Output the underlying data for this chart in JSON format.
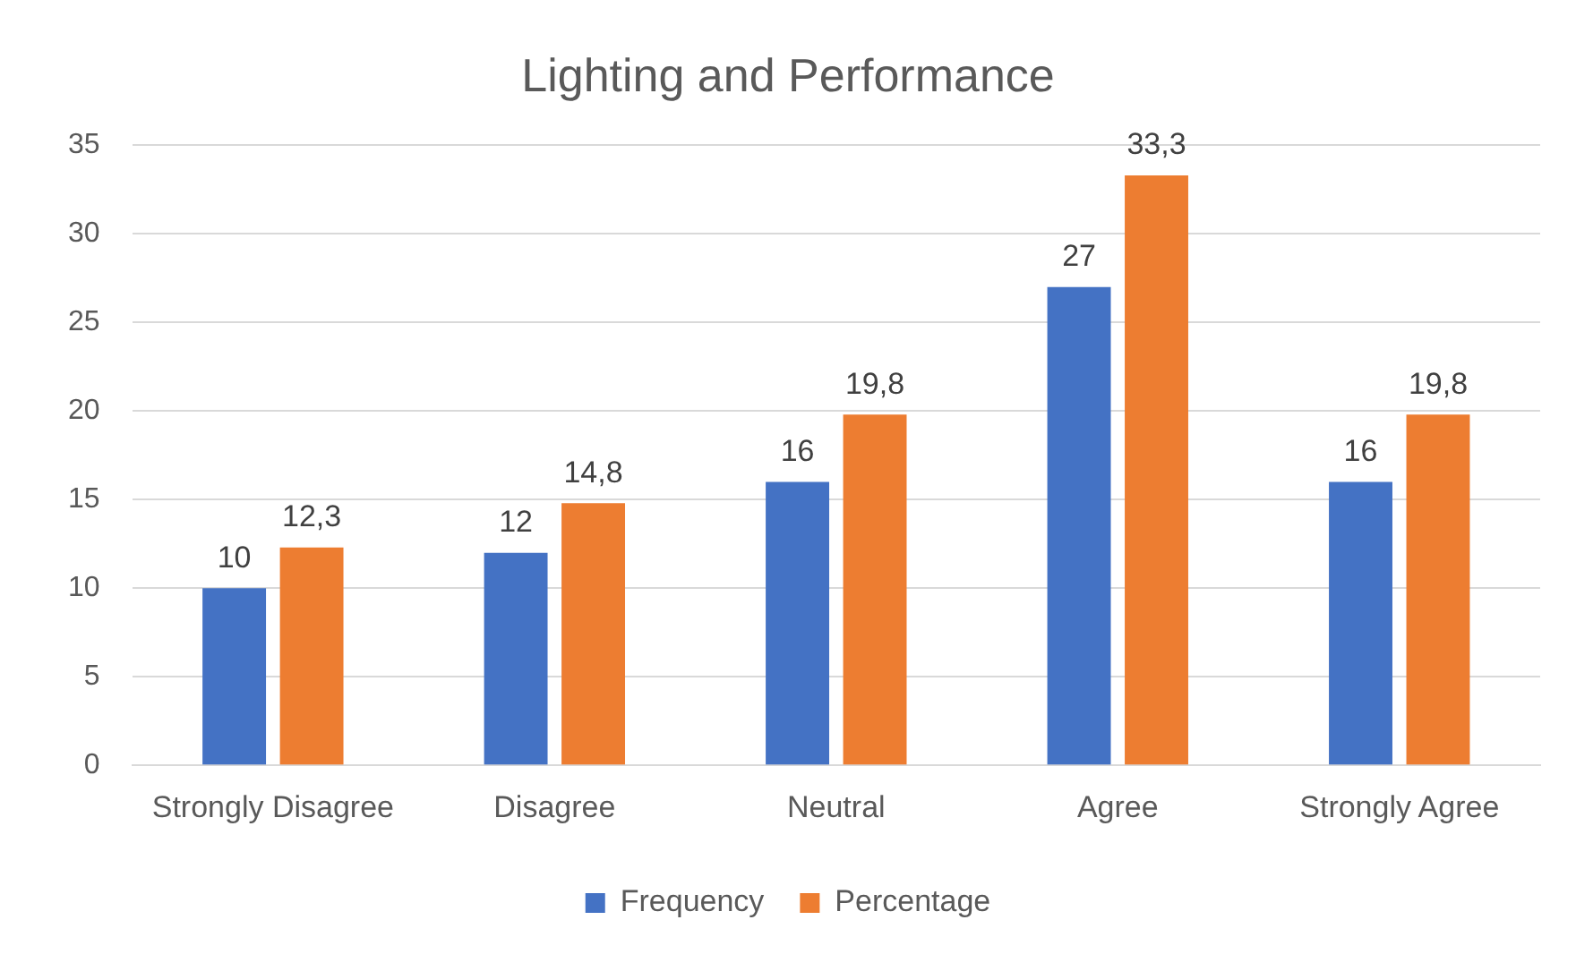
{
  "chart_data": {
    "type": "bar",
    "title": "Lighting and Performance",
    "categories": [
      "Strongly Disagree",
      "Disagree",
      "Neutral",
      "Agree",
      "Strongly Agree"
    ],
    "series": [
      {
        "name": "Frequency",
        "color": "#4472c4",
        "values": [
          10,
          12,
          16,
          27,
          16
        ],
        "value_labels": [
          "10",
          "12",
          "16",
          "27",
          "16"
        ]
      },
      {
        "name": "Percentage",
        "color": "#ed7d31",
        "values": [
          12.3,
          14.8,
          19.8,
          33.3,
          19.8
        ],
        "value_labels": [
          "12,3",
          "14,8",
          "19,8",
          "33,3",
          "19,8"
        ]
      }
    ],
    "ylim": [
      0,
      35
    ],
    "yticks": [
      0,
      5,
      10,
      15,
      20,
      25,
      30,
      35
    ],
    "grid": "y",
    "legend": "bottom"
  }
}
